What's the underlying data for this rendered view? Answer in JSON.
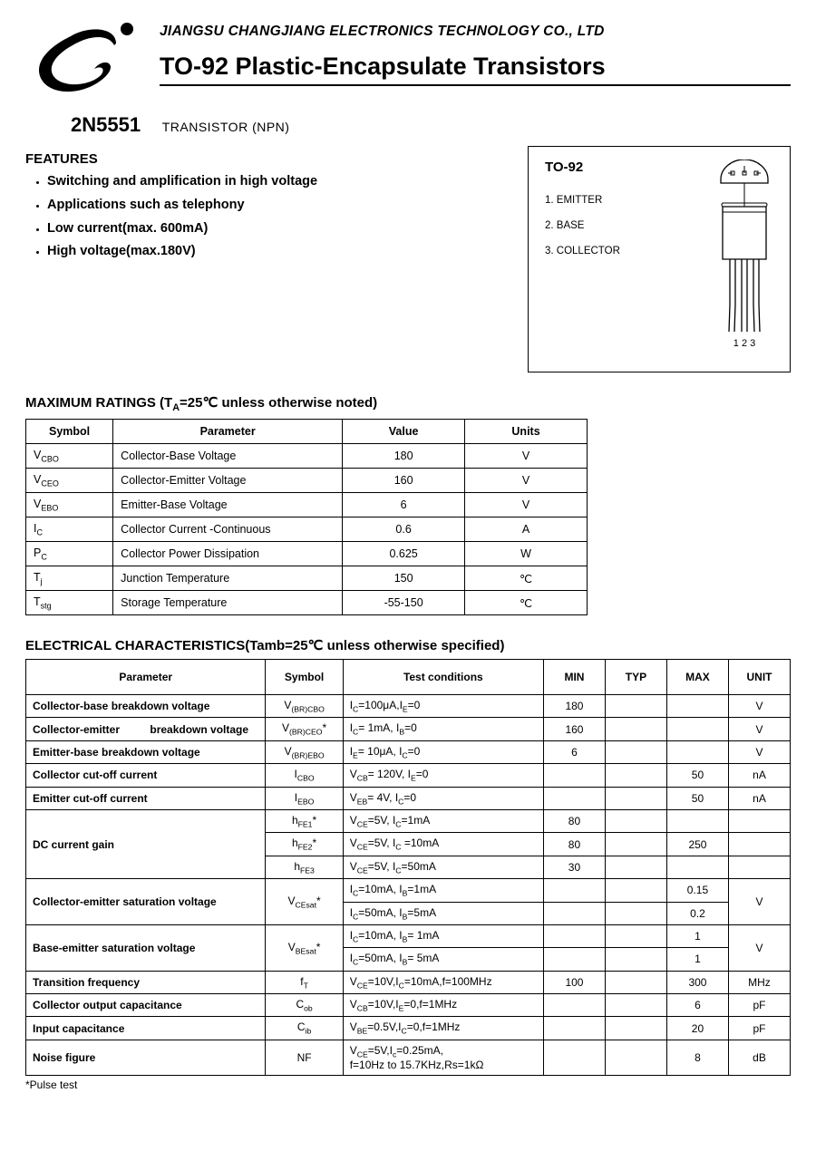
{
  "header": {
    "company": "JIANGSU CHANGJIANG ELECTRONICS TECHNOLOGY CO., LTD",
    "title": "TO-92 Plastic-Encapsulate Transistors"
  },
  "part": {
    "number": "2N5551",
    "type": "TRANSISTOR (NPN)"
  },
  "features": {
    "heading": "FEATURES",
    "items": [
      "Switching and amplification in high voltage",
      "Applications such as telephony",
      "Low current(max. 600mA)",
      "High voltage(max.180V)"
    ]
  },
  "package": {
    "name": "TO-92",
    "pins": [
      "1. EMITTER",
      "2. BASE",
      "3. COLLECTOR"
    ],
    "pin_nums": "1  2  3"
  },
  "max_ratings": {
    "heading": "MAXIMUM RATINGS (T",
    "heading_sub": "A",
    "heading_rest": "=25℃ unless otherwise noted)",
    "headers": [
      "Symbol",
      "Parameter",
      "Value",
      "Units"
    ],
    "rows": [
      {
        "sym": "V",
        "sub": "CBO",
        "param": "Collector-Base Voltage",
        "val": "180",
        "unit": "V"
      },
      {
        "sym": "V",
        "sub": "CEO",
        "param": "Collector-Emitter Voltage",
        "val": "160",
        "unit": "V"
      },
      {
        "sym": "V",
        "sub": "EBO",
        "param": "Emitter-Base Voltage",
        "val": "6",
        "unit": "V"
      },
      {
        "sym": "I",
        "sub": "C",
        "param": "Collector Current -Continuous",
        "val": "0.6",
        "unit": "A"
      },
      {
        "sym": "P",
        "sub": "C",
        "param": "Collector Power Dissipation",
        "val": "0.625",
        "unit": "W"
      },
      {
        "sym": "T",
        "sub": "j",
        "param": "Junction Temperature",
        "val": "150",
        "unit": "℃"
      },
      {
        "sym": "T",
        "sub": "stg",
        "param": "Storage Temperature",
        "val": "-55-150",
        "unit": "℃"
      }
    ]
  },
  "elec": {
    "heading": "ELECTRICAL CHARACTERISTICS(Tamb=25℃ unless otherwise specified)",
    "headers": [
      "Parameter",
      "Symbol",
      "Test    conditions",
      "MIN",
      "TYP",
      "MAX",
      "UNIT"
    ]
  },
  "footnote": "*Pulse test"
}
